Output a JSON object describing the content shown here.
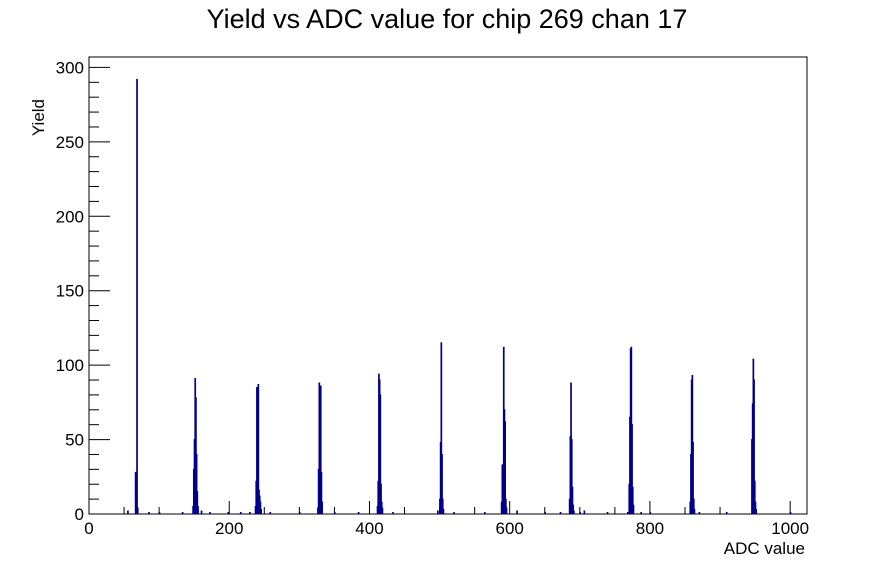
{
  "chart_data": {
    "type": "histogram",
    "title": "Yield vs ADC value for chip 269 chan 17",
    "xlabel": "ADC value",
    "ylabel": "Yield",
    "xlim": [
      0,
      1024
    ],
    "ylim": [
      0,
      307
    ],
    "x_ticks": [
      0,
      200,
      400,
      600,
      800,
      1000
    ],
    "y_ticks": [
      0,
      50,
      100,
      150,
      200,
      250,
      300
    ],
    "line_color": "#00008b",
    "grid": false,
    "legend": "none",
    "bin_width": 1,
    "bins": [
      [
        66,
        28
      ],
      [
        67,
        12
      ],
      [
        68,
        292
      ],
      [
        69,
        4
      ],
      [
        55,
        2
      ],
      [
        85,
        1
      ],
      [
        100,
        1
      ],
      [
        133,
        1
      ],
      [
        148,
        5
      ],
      [
        149,
        30
      ],
      [
        150,
        50
      ],
      [
        151,
        91
      ],
      [
        152,
        78
      ],
      [
        153,
        40
      ],
      [
        154,
        15
      ],
      [
        155,
        5
      ],
      [
        160,
        2
      ],
      [
        172,
        1
      ],
      [
        198,
        1
      ],
      [
        216,
        1
      ],
      [
        229,
        1
      ],
      [
        237,
        5
      ],
      [
        238,
        22
      ],
      [
        239,
        85
      ],
      [
        240,
        63
      ],
      [
        241,
        87
      ],
      [
        242,
        16
      ],
      [
        243,
        12
      ],
      [
        244,
        8
      ],
      [
        245,
        3
      ],
      [
        258,
        1
      ],
      [
        300,
        1
      ],
      [
        326,
        4
      ],
      [
        327,
        30
      ],
      [
        328,
        88
      ],
      [
        329,
        65
      ],
      [
        330,
        86
      ],
      [
        331,
        28
      ],
      [
        332,
        8
      ],
      [
        350,
        1
      ],
      [
        384,
        1
      ],
      [
        411,
        5
      ],
      [
        412,
        22
      ],
      [
        413,
        94
      ],
      [
        414,
        90
      ],
      [
        415,
        80
      ],
      [
        416,
        20
      ],
      [
        417,
        8
      ],
      [
        418,
        4
      ],
      [
        433,
        1
      ],
      [
        497,
        2
      ],
      [
        500,
        10
      ],
      [
        501,
        48
      ],
      [
        502,
        115
      ],
      [
        503,
        40
      ],
      [
        504,
        10
      ],
      [
        505,
        3
      ],
      [
        520,
        1
      ],
      [
        564,
        1
      ],
      [
        588,
        8
      ],
      [
        589,
        33
      ],
      [
        590,
        33
      ],
      [
        591,
        112
      ],
      [
        592,
        70
      ],
      [
        593,
        62
      ],
      [
        594,
        10
      ],
      [
        595,
        4
      ],
      [
        610,
        2
      ],
      [
        650,
        1
      ],
      [
        672,
        1
      ],
      [
        685,
        10
      ],
      [
        686,
        52
      ],
      [
        687,
        88
      ],
      [
        688,
        50
      ],
      [
        689,
        18
      ],
      [
        690,
        6
      ],
      [
        691,
        2
      ],
      [
        700,
        1
      ],
      [
        706,
        2
      ],
      [
        739,
        1
      ],
      [
        768,
        1
      ],
      [
        770,
        20
      ],
      [
        771,
        65
      ],
      [
        772,
        111
      ],
      [
        773,
        112
      ],
      [
        774,
        60
      ],
      [
        775,
        18
      ],
      [
        776,
        6
      ],
      [
        787,
        1
      ],
      [
        800,
        1
      ],
      [
        857,
        8
      ],
      [
        858,
        40
      ],
      [
        859,
        90
      ],
      [
        860,
        93
      ],
      [
        861,
        48
      ],
      [
        862,
        10
      ],
      [
        863,
        3
      ],
      [
        870,
        1
      ],
      [
        909,
        1
      ],
      [
        945,
        50
      ],
      [
        946,
        74
      ],
      [
        947,
        104
      ],
      [
        948,
        90
      ],
      [
        949,
        22
      ],
      [
        950,
        8
      ],
      [
        951,
        3
      ],
      [
        1000,
        1
      ]
    ]
  }
}
